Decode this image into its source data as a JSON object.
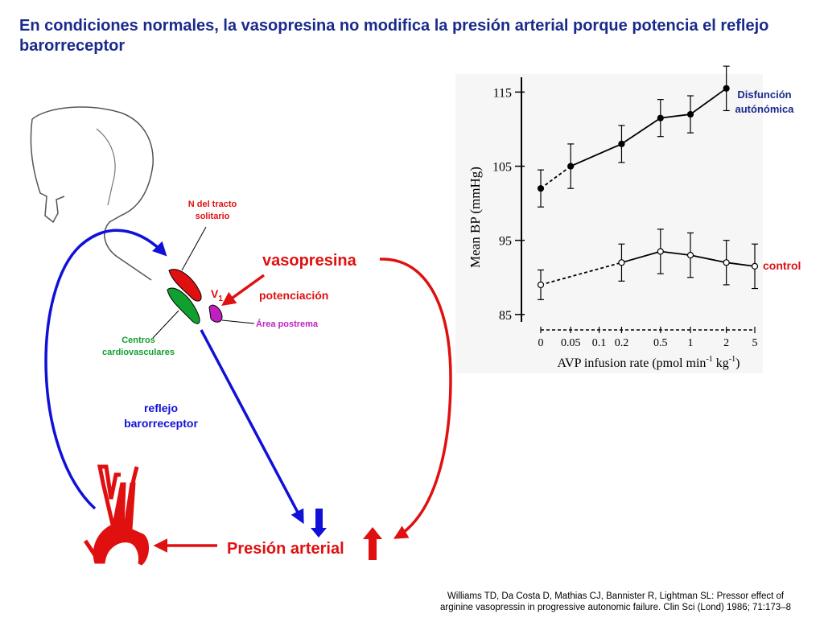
{
  "slide": {
    "title": "En condiciones normales, la vasopresina no modifica la presión arterial porque potencia el reflejo barorreceptor"
  },
  "diagram": {
    "labels": {
      "nts_line1": "N del tracto",
      "nts_line2": "solitario",
      "vasopresina": "vasopresina",
      "v1_main": "V",
      "v1_sub": "1",
      "potenciacion": "potenciación",
      "area_postrema": "Área postrema",
      "centros_line1": "Centros",
      "centros_line2": "cardiovasculares",
      "reflejo_line1": "reflejo",
      "reflejo_line2": "barorreceptor",
      "presion_arterial": "Presión arterial"
    },
    "colors": {
      "blue": "#1010d8",
      "red": "#e01010",
      "green": "#10a030",
      "magenta": "#c020c0",
      "nts_label": "#e01010",
      "centros_label": "#10a030",
      "area_label": "#c020c0",
      "title": "#1a2a8c"
    }
  },
  "chart_data": {
    "type": "line",
    "x": [
      0,
      0.05,
      0.2,
      0.5,
      1,
      2,
      5
    ],
    "xlabel_parts": [
      "AVP infusion rate (pmol min",
      "-1",
      " kg",
      "-1",
      ")"
    ],
    "ylabel": "Mean BP (mmHg)",
    "yticks": [
      85,
      95,
      105,
      115
    ],
    "ylim": [
      84,
      117
    ],
    "xtick_labels": [
      "0",
      "0.05",
      "0.1",
      "0.2",
      "0.5",
      "1",
      "2",
      "5"
    ],
    "xtick_values": [
      0,
      0.05,
      0.1,
      0.2,
      0.5,
      1,
      2,
      5
    ],
    "series": [
      {
        "name": "Disfunción autonómica",
        "name_line1": "Disfunción",
        "name_line2": "autónómica",
        "x": [
          0,
          0.05,
          0.2,
          0.5,
          1,
          2
        ],
        "values": [
          102,
          105,
          108,
          111.5,
          112,
          115.5
        ],
        "errors": [
          2.5,
          3,
          2.5,
          2.5,
          2.5,
          3
        ],
        "marker": "filled",
        "dashed_first_segment": true,
        "color": "#000000"
      },
      {
        "name": "control",
        "x": [
          0,
          0.2,
          0.5,
          1,
          2,
          5
        ],
        "values": [
          89,
          92,
          93.5,
          93,
          92,
          91.5
        ],
        "errors": [
          2,
          2.5,
          3,
          3,
          3,
          3
        ],
        "marker": "open",
        "dashed_first_segment": true,
        "color": "#000000"
      }
    ],
    "legend_color": "#1a2a8c",
    "control_label_color": "#e01010"
  },
  "citation": {
    "line1": "Williams TD, Da Costa D, Mathias CJ, Bannister R, Lightman SL: Pressor effect of",
    "line2": "arginine vasopressin in progressive autonomic failure. Clin Sci (Lond) 1986; 71:173–8"
  }
}
